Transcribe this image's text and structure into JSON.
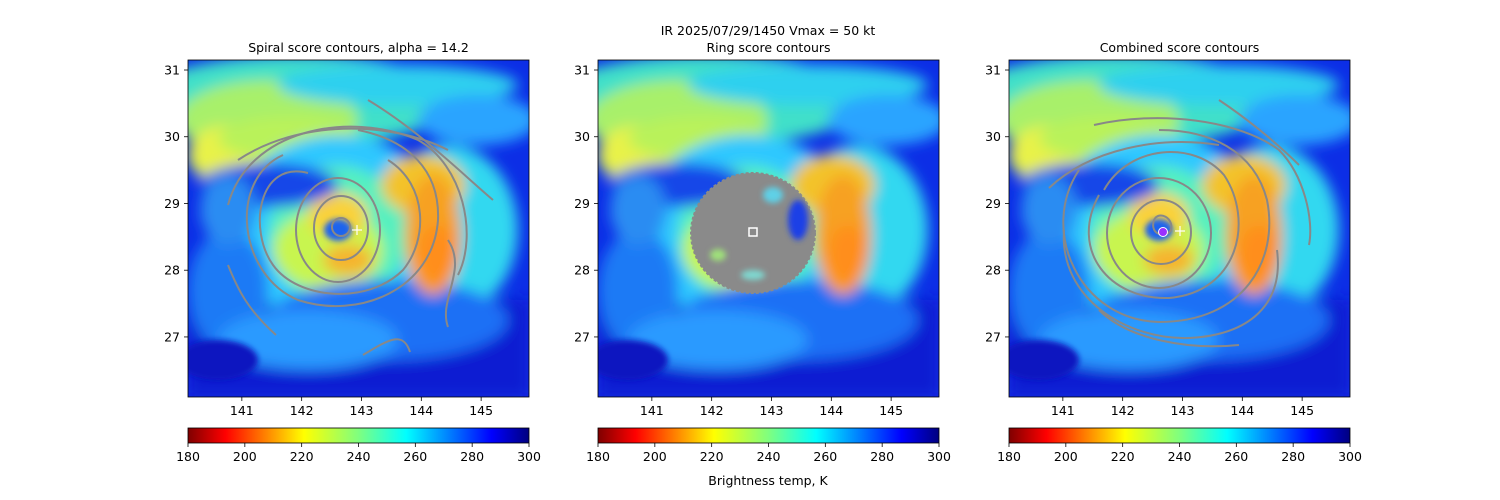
{
  "figure": {
    "suptitle_line1": "IR  2025/07/29/1450    Vmax = 50 kt",
    "colorbar_label": "Brightness temp, K"
  },
  "chart_data": [
    {
      "type": "heatmap",
      "title": "Spiral score contours, alpha = 14.2",
      "xlim": [
        140.1,
        145.8
      ],
      "ylim": [
        26.1,
        31.15
      ],
      "xticks": [
        "141",
        "142",
        "143",
        "144",
        "145"
      ],
      "yticks": [
        "27",
        "28",
        "29",
        "30",
        "31"
      ],
      "overlay": "contours",
      "best_center": {
        "lon": 142.95,
        "lat": 28.6,
        "marker": "white-plus"
      },
      "colorbar": {
        "range": [
          180,
          300
        ],
        "ticks": [
          "180",
          "200",
          "220",
          "240",
          "260",
          "280",
          "300"
        ],
        "colormap": "jet_r"
      }
    },
    {
      "type": "heatmap",
      "title": "Ring score contours",
      "xlim": [
        140.1,
        145.8
      ],
      "ylim": [
        26.1,
        31.15
      ],
      "xticks": [
        "141",
        "142",
        "143",
        "144",
        "145"
      ],
      "yticks": [
        "27",
        "28",
        "29",
        "30",
        "31"
      ],
      "overlay": "dense-contours-disk",
      "best_center": {
        "lon": 142.65,
        "lat": 28.58,
        "marker": "white-square"
      },
      "colorbar": {
        "range": [
          180,
          300
        ],
        "ticks": [
          "180",
          "200",
          "220",
          "240",
          "260",
          "280",
          "300"
        ],
        "colormap": "jet_r"
      }
    },
    {
      "type": "heatmap",
      "title": "Combined score contours",
      "xlim": [
        140.1,
        145.8
      ],
      "ylim": [
        26.1,
        31.15
      ],
      "xticks": [
        "141",
        "142",
        "143",
        "144",
        "145"
      ],
      "yticks": [
        "27",
        "28",
        "29",
        "30",
        "31"
      ],
      "overlay": "contours",
      "best_center": {
        "lon": 142.65,
        "lat": 28.58,
        "marker": "purple-dot"
      },
      "first_guess": {
        "lon": 142.95,
        "lat": 28.6,
        "marker": "white-plus"
      },
      "colorbar": {
        "range": [
          180,
          300
        ],
        "ticks": [
          "180",
          "200",
          "220",
          "240",
          "260",
          "280",
          "300"
        ],
        "colormap": "jet_r"
      }
    }
  ]
}
